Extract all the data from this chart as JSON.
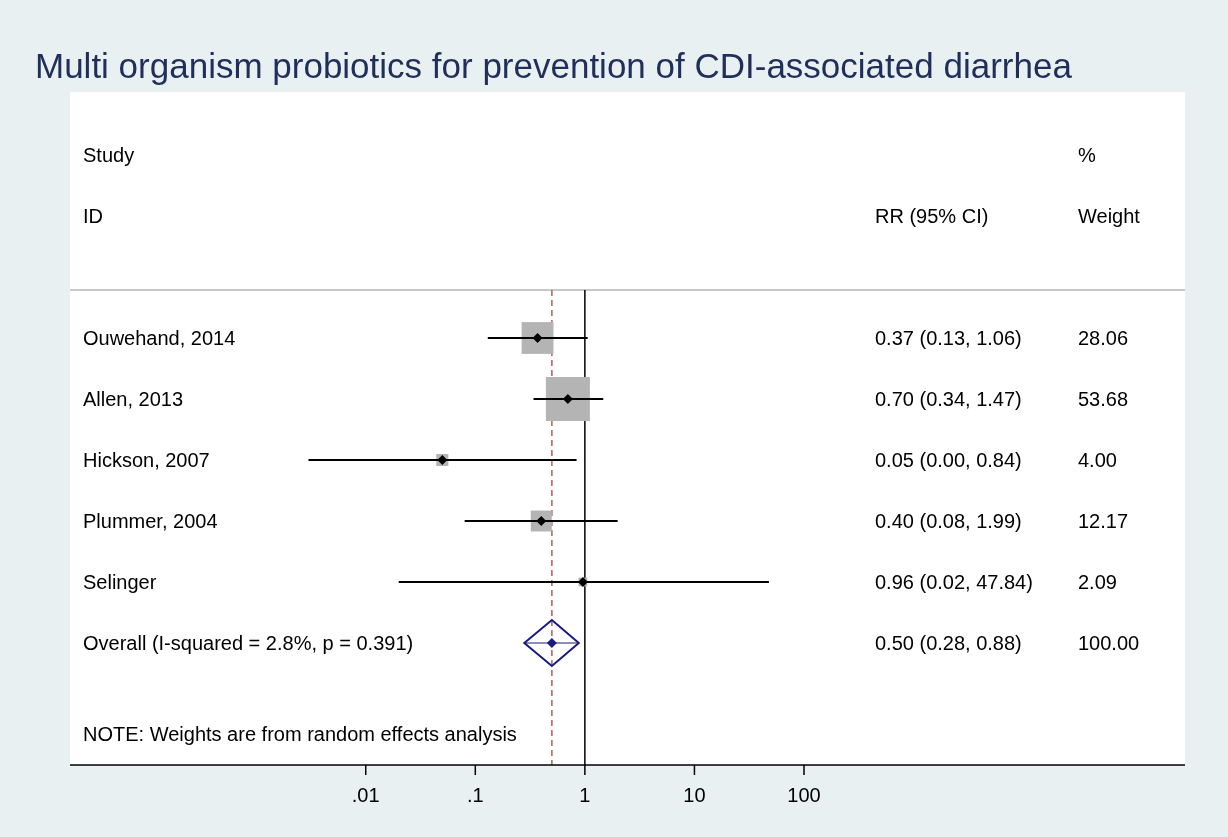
{
  "chart_data": {
    "type": "scatter",
    "title": "Multi organism probiotics for prevention of CDI-associated diarrhea",
    "orientation": "horizontal",
    "log": "x",
    "xlim": [
      2e-05,
      300000
    ],
    "xticks": [
      {
        "value": 0.01,
        "label": ".01"
      },
      {
        "value": 0.1,
        "label": ".1"
      },
      1,
      10,
      100
    ],
    "categories": [
      "Ouwehand, 2014",
      "Allen, 2013",
      "Hickson, 2007",
      "Plummer, 2004",
      "Selinger",
      "Overall  (I-squared = 2.8%, p = 0.391)"
    ],
    "series": [
      {
        "type": "bubble",
        "marker": "square",
        "color": "#b4b4b4",
        "values": [
          0.37,
          0.7,
          0.05,
          0.4,
          0.96,
          null
        ],
        "sizes": [
          0.523,
          1,
          0.075,
          0.227,
          0.039,
          null
        ]
      },
      {
        "marker": "diamond",
        "color": "#000000",
        "values": [
          0.37,
          0.7,
          0.05,
          0.4,
          0.96,
          null
        ],
        "errors": [
          [
            0.13,
            1.06
          ],
          [
            0.34,
            1.47
          ],
          [
            0.003,
            0.84
          ],
          [
            0.08,
            1.99
          ],
          [
            0.02,
            47.84
          ],
          null
        ]
      },
      {
        "marker": "diamond",
        "color": "#1a1a80",
        "values": [
          null,
          null,
          null,
          null,
          null,
          0.5
        ],
        "errors": [
          null,
          null,
          null,
          null,
          null,
          [
            0.28,
            0.88
          ]
        ]
      }
    ],
    "ref_lines": [
      {
        "axis": "x",
        "value": 1,
        "color": "#000000",
        "line_style": "solid"
      },
      {
        "axis": "x",
        "value": 0.5,
        "color": "#b06060",
        "line_style": "dashed"
      }
    ],
    "annotations": [
      "Study",
      "ID",
      "RR (95% CI)",
      "%",
      "Weight",
      "0.37 (0.13, 1.06)",
      "0.70 (0.34, 1.47)",
      "0.05 (0.00, 0.84)",
      "0.40 (0.08, 1.99)",
      "0.96 (0.02, 47.84)",
      "0.50 (0.28, 0.88)",
      "28.06",
      "53.68",
      "4.00",
      "12.17",
      "2.09",
      "100.00",
      "NOTE: Weights are from random effects analysis"
    ]
  }
}
